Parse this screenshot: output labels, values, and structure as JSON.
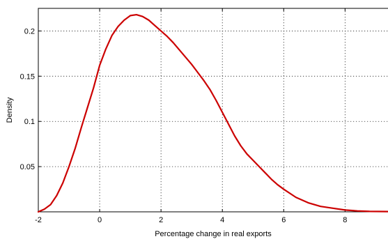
{
  "chart_data": {
    "type": "line",
    "title": "",
    "xlabel": "Percentage change in real exports",
    "ylabel": "Density",
    "xlim": [
      -2,
      9.4
    ],
    "ylim": [
      0,
      0.225
    ],
    "xticks": [
      -2,
      0,
      2,
      4,
      6,
      8
    ],
    "xtick_labels": [
      "-2",
      "0",
      "2",
      "4",
      "6",
      "8"
    ],
    "yticks": [
      0.05,
      0.1,
      0.15,
      0.2
    ],
    "ytick_labels": [
      "0.05",
      "0.1",
      "0.15",
      "0.2"
    ],
    "grid": true,
    "legend": "none",
    "series": [
      {
        "color": "#cc0000",
        "x": [
          -2.0,
          -1.8,
          -1.6,
          -1.4,
          -1.2,
          -1.0,
          -0.8,
          -0.6,
          -0.4,
          -0.2,
          0.0,
          0.2,
          0.4,
          0.6,
          0.8,
          1.0,
          1.2,
          1.4,
          1.6,
          1.8,
          2.0,
          2.2,
          2.4,
          2.6,
          2.8,
          3.0,
          3.2,
          3.4,
          3.6,
          3.8,
          4.0,
          4.2,
          4.4,
          4.6,
          4.8,
          5.0,
          5.2,
          5.4,
          5.6,
          5.8,
          6.0,
          6.4,
          6.8,
          7.2,
          7.6,
          8.0,
          8.4,
          8.8,
          9.4
        ],
        "y": [
          0.0,
          0.003,
          0.008,
          0.018,
          0.032,
          0.05,
          0.07,
          0.093,
          0.115,
          0.137,
          0.162,
          0.18,
          0.195,
          0.205,
          0.212,
          0.217,
          0.218,
          0.216,
          0.212,
          0.206,
          0.2,
          0.194,
          0.187,
          0.179,
          0.171,
          0.163,
          0.154,
          0.145,
          0.135,
          0.123,
          0.11,
          0.097,
          0.084,
          0.073,
          0.064,
          0.057,
          0.05,
          0.043,
          0.036,
          0.03,
          0.025,
          0.016,
          0.01,
          0.006,
          0.004,
          0.002,
          0.001,
          0.0005,
          0.0003
        ]
      }
    ]
  }
}
